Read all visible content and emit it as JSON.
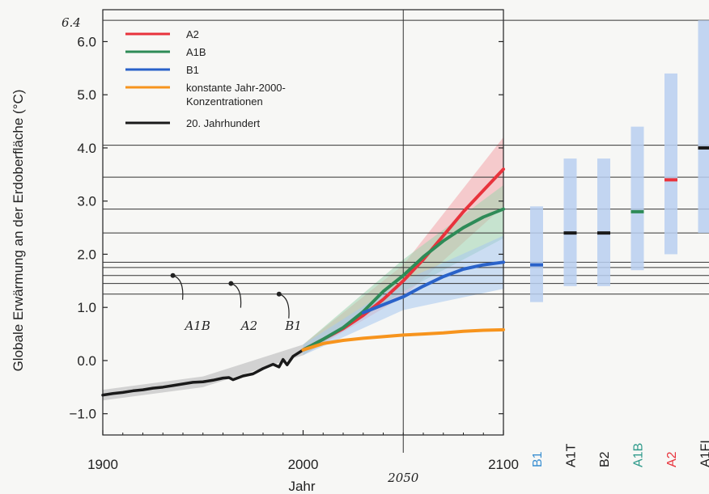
{
  "chart_data": {
    "type": "line",
    "title": "",
    "xlabel": "Jahr",
    "ylabel": "Globale Erwärmung an der Erdoberfläche (°C)",
    "xlim": [
      1900,
      2100
    ],
    "ylim": [
      -1.4,
      6.6
    ],
    "x_ticks": [
      "1900",
      "2000",
      "2100"
    ],
    "x_annotation": "2050",
    "y_ticks": [
      "−1.0",
      "0.0",
      "1.0",
      "2.0",
      "3.0",
      "4.0",
      "5.0",
      "6.0"
    ],
    "y_top_annotation": "6.4",
    "legend": {
      "placement": "top-left",
      "entries": [
        {
          "label": "A2",
          "color": "#e8333c"
        },
        {
          "label": "A1B",
          "color": "#2e8b57"
        },
        {
          "label": "B1",
          "color": "#2a62c9"
        },
        {
          "label": "konstante Jahr-2000-",
          "label2": "Konzentrationen",
          "color": "#f7941d"
        },
        {
          "label": "20. Jahrhundert",
          "color": "#1a1a1a"
        }
      ]
    },
    "series": [
      {
        "name": "20. Jahrhundert",
        "color": "#1a1a1a",
        "x": [
          1900,
          1905,
          1910,
          1915,
          1920,
          1925,
          1930,
          1935,
          1940,
          1945,
          1950,
          1955,
          1960,
          1963,
          1965,
          1970,
          1975,
          1980,
          1985,
          1988,
          1990,
          1992,
          1995,
          2000
        ],
        "y": [
          -0.65,
          -0.62,
          -0.6,
          -0.57,
          -0.55,
          -0.52,
          -0.5,
          -0.47,
          -0.44,
          -0.41,
          -0.4,
          -0.37,
          -0.33,
          -0.32,
          -0.36,
          -0.29,
          -0.25,
          -0.15,
          -0.07,
          -0.12,
          0.02,
          -0.08,
          0.08,
          0.2
        ]
      },
      {
        "name": "A2",
        "color": "#e8333c",
        "x": [
          2000,
          2010,
          2020,
          2030,
          2040,
          2050,
          2060,
          2070,
          2080,
          2090,
          2100
        ],
        "y": [
          0.2,
          0.4,
          0.6,
          0.85,
          1.15,
          1.5,
          1.9,
          2.35,
          2.8,
          3.2,
          3.6
        ]
      },
      {
        "name": "A1B",
        "color": "#2e8b57",
        "x": [
          2000,
          2010,
          2020,
          2030,
          2040,
          2050,
          2060,
          2070,
          2080,
          2090,
          2100
        ],
        "y": [
          0.2,
          0.4,
          0.62,
          0.92,
          1.3,
          1.6,
          1.95,
          2.25,
          2.5,
          2.7,
          2.85
        ]
      },
      {
        "name": "B1",
        "color": "#2a62c9",
        "x": [
          2030,
          2040,
          2050,
          2060,
          2070,
          2080,
          2090,
          2100
        ],
        "y": [
          0.9,
          1.05,
          1.2,
          1.4,
          1.58,
          1.72,
          1.8,
          1.85
        ]
      },
      {
        "name": "konstante Jahr-2000-Konzentrationen",
        "color": "#f7941d",
        "x": [
          2000,
          2010,
          2020,
          2030,
          2040,
          2050,
          2060,
          2070,
          2080,
          2090,
          2100
        ],
        "y": [
          0.2,
          0.32,
          0.38,
          0.42,
          0.45,
          0.48,
          0.5,
          0.52,
          0.55,
          0.57,
          0.58
        ]
      }
    ],
    "uncertainty_bands": [
      {
        "series": "20. Jahrhundert",
        "color": "#b5b5b5",
        "x": [
          1900,
          1950,
          2000
        ],
        "low": [
          -0.75,
          -0.5,
          0.1
        ],
        "high": [
          -0.55,
          -0.3,
          0.3
        ]
      },
      {
        "series": "A2",
        "color": "#f4a6aa",
        "x": [
          2000,
          2050,
          2100
        ],
        "low": [
          0.1,
          1.2,
          2.9
        ],
        "high": [
          0.3,
          1.8,
          4.2
        ]
      },
      {
        "series": "A1B",
        "color": "#9fd3ae",
        "x": [
          2000,
          2050,
          2100
        ],
        "low": [
          0.1,
          1.3,
          2.3
        ],
        "high": [
          0.3,
          1.9,
          3.3
        ]
      },
      {
        "series": "B1",
        "color": "#a8c8ee",
        "x": [
          2000,
          2050,
          2100
        ],
        "low": [
          0.1,
          0.95,
          1.35
        ],
        "high": [
          0.3,
          1.5,
          2.35
        ]
      }
    ],
    "reference_lines_y": [
      6.4,
      4.05,
      3.45,
      2.85,
      2.4,
      1.85,
      1.75,
      1.6,
      1.45,
      1.25
    ],
    "handwritten_labels": [
      {
        "text": "A1B",
        "dot": [
          1935,
          1.6
        ],
        "x": 1941,
        "y": 0.85
      },
      {
        "text": "A2",
        "dot": [
          1964,
          1.45
        ],
        "x": 1969,
        "y": 0.85
      },
      {
        "text": "B1",
        "dot": [
          1988,
          1.25
        ],
        "x": 1991,
        "y": 0.85
      }
    ],
    "scenario_bars": [
      {
        "label": "B1",
        "color": "#3a8fd1",
        "low": 1.1,
        "high": 2.9,
        "best": 1.8,
        "best_color": "#2a62c9"
      },
      {
        "label": "A1T",
        "color": "#1a1a1a",
        "low": 1.4,
        "high": 3.8,
        "best": 2.4,
        "best_color": "#1a1a1a"
      },
      {
        "label": "B2",
        "color": "#1a1a1a",
        "low": 1.4,
        "high": 3.8,
        "best": 2.4,
        "best_color": "#1a1a1a"
      },
      {
        "label": "A1B",
        "color": "#2e9a8a",
        "low": 1.7,
        "high": 4.4,
        "best": 2.8,
        "best_color": "#2e8b57"
      },
      {
        "label": "A2",
        "color": "#e8333c",
        "low": 2.0,
        "high": 5.4,
        "best": 3.4,
        "best_color": "#e8333c"
      },
      {
        "label": "A1FI",
        "color": "#1a1a1a",
        "low": 2.4,
        "high": 6.4,
        "best": 4.0,
        "best_color": "#1a1a1a"
      }
    ]
  }
}
